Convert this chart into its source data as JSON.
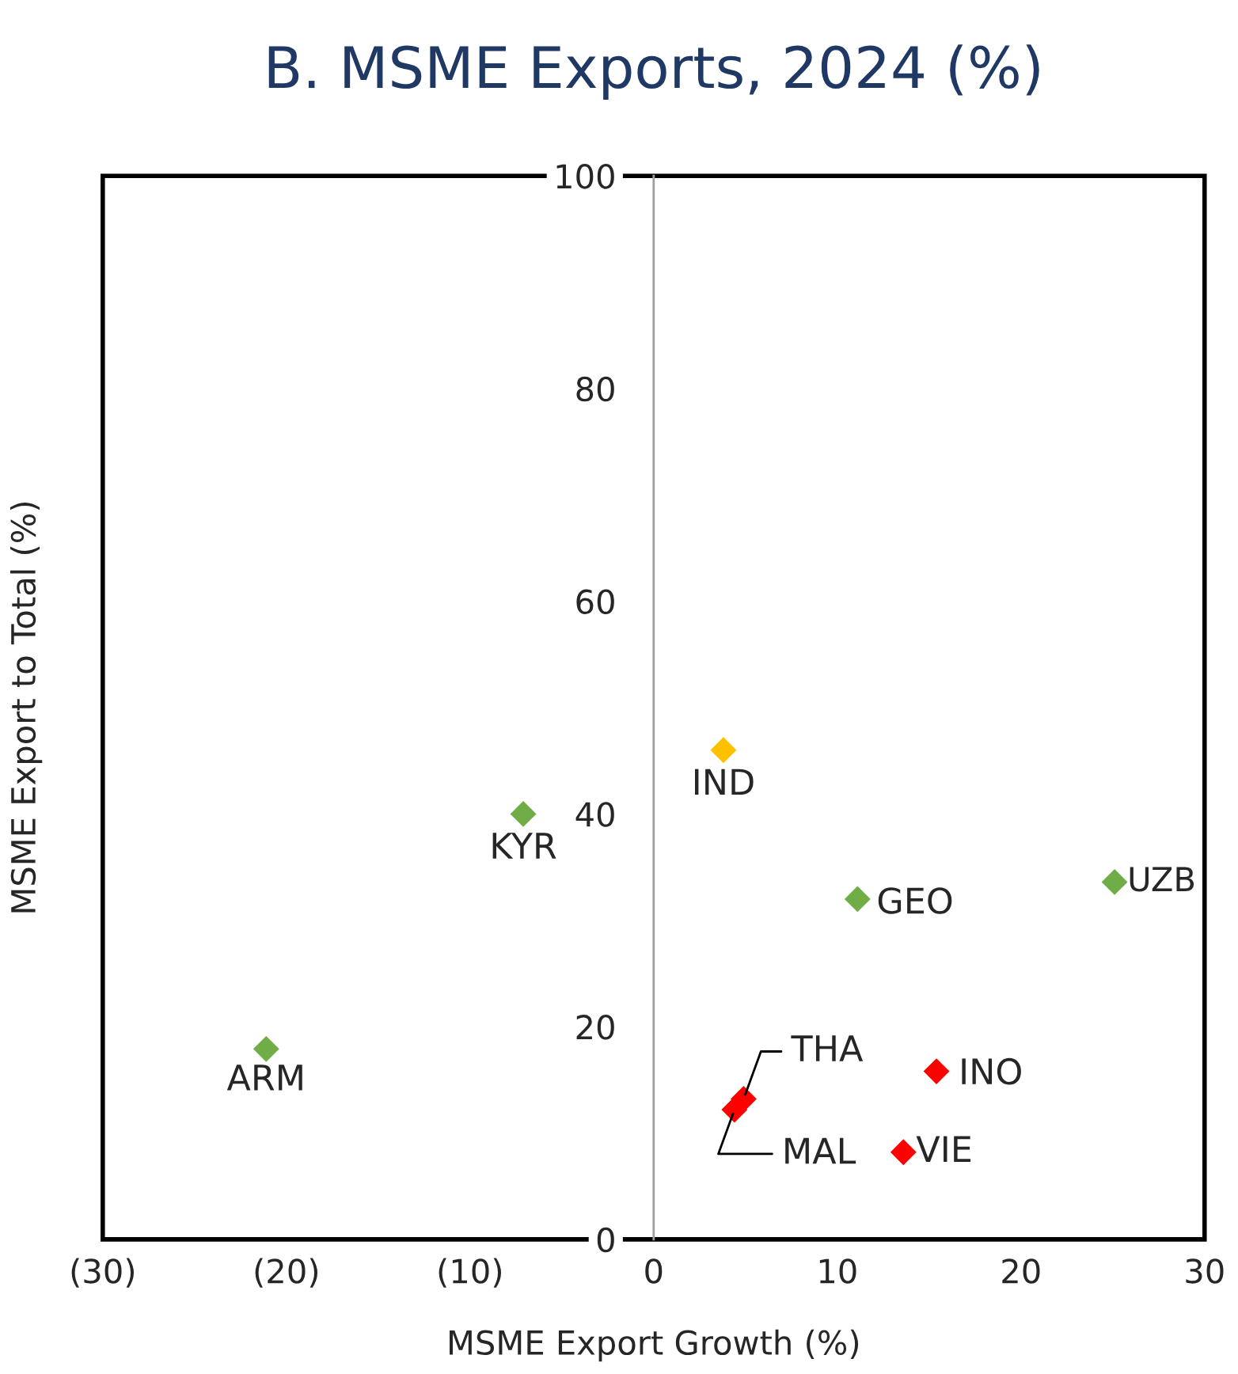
{
  "chart_data": {
    "type": "scatter",
    "title": "B. MSME Exports, 2024 (%)",
    "xlabel": "MSME Export Growth (%)",
    "ylabel": "MSME Export to Total (%)",
    "series": [
      {
        "color": "#70ad47",
        "x": [
          -21.1,
          -7.1,
          11.1,
          25.1
        ],
        "values": [
          17.9,
          40.0,
          32.0,
          33.6
        ]
      },
      {
        "color": "#ffc000",
        "x": [
          3.8
        ],
        "values": [
          46.0
        ]
      },
      {
        "color": "#ff0000",
        "x": [
          4.9,
          4.4,
          15.4,
          13.6
        ],
        "values": [
          13.2,
          12.2,
          15.8,
          8.2
        ]
      }
    ],
    "annotations": [
      {
        "text": "ARM",
        "x": -21.1,
        "y": 17.9
      },
      {
        "text": "KYR",
        "x": -7.1,
        "y": 40.0
      },
      {
        "text": "IND",
        "x": 3.8,
        "y": 46.0
      },
      {
        "text": "GEO",
        "x": 11.1,
        "y": 32.0
      },
      {
        "text": "UZB",
        "x": 25.1,
        "y": 33.6
      },
      {
        "text": "THA",
        "x": 4.9,
        "y": 13.2
      },
      {
        "text": "MAL",
        "x": 4.4,
        "y": 12.2
      },
      {
        "text": "INO",
        "x": 15.4,
        "y": 15.8
      },
      {
        "text": "VIE",
        "x": 13.6,
        "y": 8.2
      }
    ],
    "xlim": [
      -30,
      30
    ],
    "xticks": [
      {
        "value": -30,
        "label": "(30)"
      },
      {
        "value": -20,
        "label": "(20)"
      },
      {
        "value": -10,
        "label": "(10)"
      },
      0,
      10,
      20,
      30
    ],
    "ylim": [
      0,
      100
    ],
    "yticks": [
      0,
      20,
      40,
      60,
      80,
      100
    ],
    "marker": "diamond",
    "grid": false,
    "legend": false
  }
}
